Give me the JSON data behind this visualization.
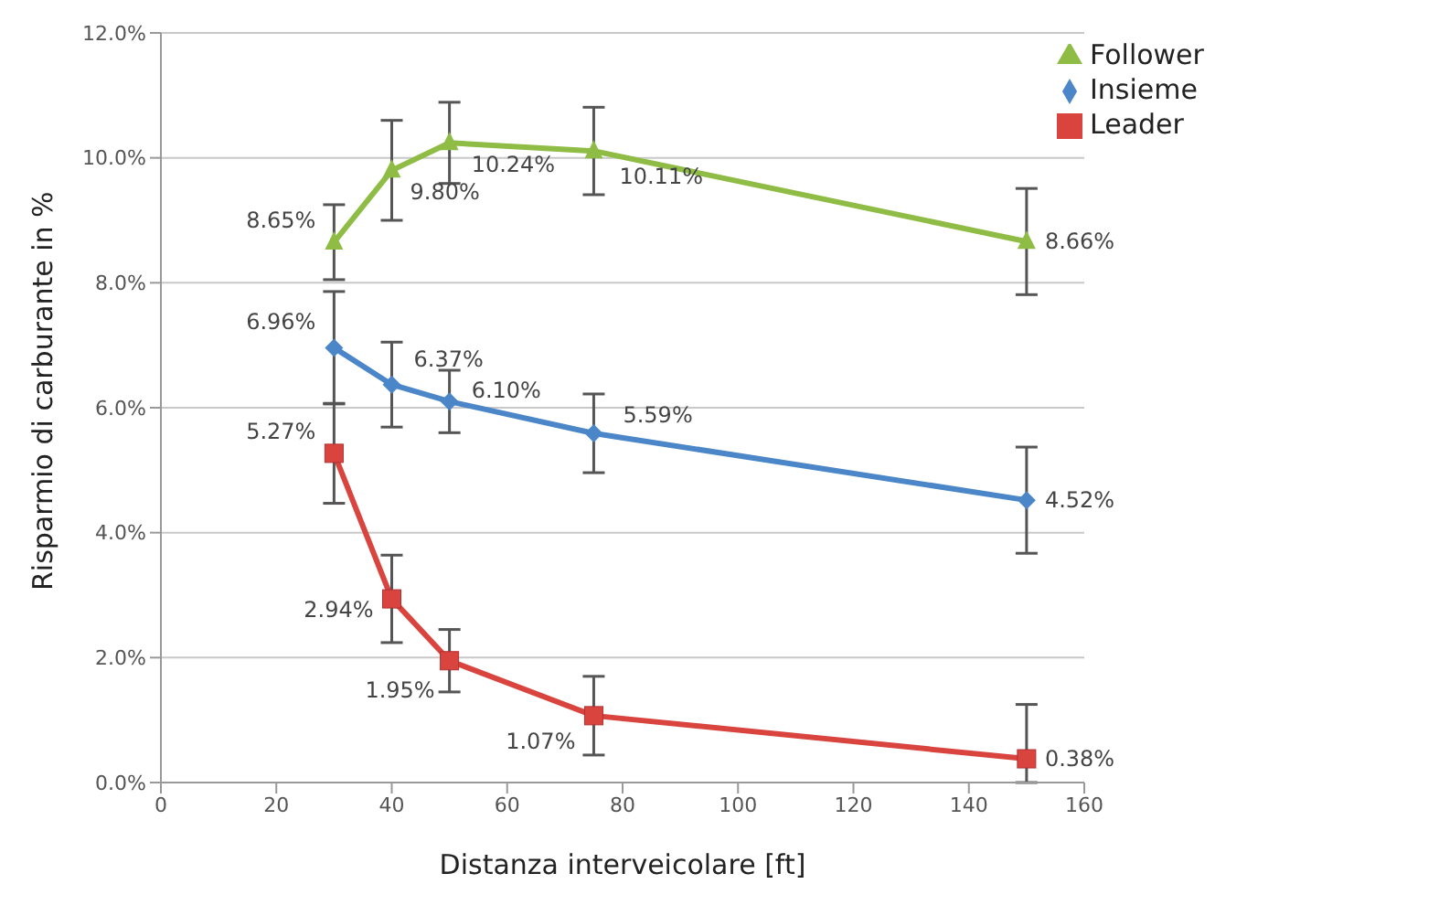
{
  "chart_data": {
    "type": "line",
    "xlabel": "Distanza interveicolare [ft]",
    "ylabel": "Risparmio di carburante in %",
    "x": [
      30,
      40,
      50,
      75,
      150
    ],
    "series": [
      {
        "name": "Follower",
        "color": "#8fbc45",
        "marker": "triangle",
        "values": [
          8.65,
          9.8,
          10.24,
          10.11,
          8.66
        ],
        "value_labels": [
          "8.65%",
          "9.80%",
          "10.24%",
          "10.11%",
          "8.66%"
        ],
        "errors": [
          0.6,
          0.8,
          0.65,
          0.7,
          0.85
        ]
      },
      {
        "name": "Insieme",
        "color": "#4a86c8",
        "marker": "diamond",
        "values": [
          6.96,
          6.37,
          6.1,
          5.59,
          4.52
        ],
        "value_labels": [
          "6.96%",
          "6.37%",
          "6.10%",
          "5.59%",
          "4.52%"
        ],
        "errors": [
          0.9,
          0.68,
          0.5,
          0.63,
          0.85
        ]
      },
      {
        "name": "Leader",
        "color": "#d9453e",
        "marker": "square",
        "values": [
          5.27,
          2.94,
          1.95,
          1.07,
          0.38
        ],
        "value_labels": [
          "5.27%",
          "2.94%",
          "1.95%",
          "1.07%",
          "0.38%"
        ],
        "errors": [
          0.8,
          0.7,
          0.5,
          0.63,
          [
            0.0,
            1.25
          ]
        ]
      }
    ],
    "xlim": [
      0,
      160
    ],
    "xticks": [
      0,
      20,
      40,
      60,
      80,
      100,
      120,
      140,
      160
    ],
    "ylim": [
      0,
      12
    ],
    "yticks": [
      {
        "value": 0,
        "label": "0.0%"
      },
      {
        "value": 2,
        "label": "2.0%"
      },
      {
        "value": 4,
        "label": "4.0%"
      },
      {
        "value": 6,
        "label": "6.0%"
      },
      {
        "value": 8,
        "label": "8.0%"
      },
      {
        "value": 10,
        "label": "10.0%"
      },
      {
        "value": 12,
        "label": "12.0%"
      }
    ],
    "grid": "y",
    "legend": "top right"
  }
}
